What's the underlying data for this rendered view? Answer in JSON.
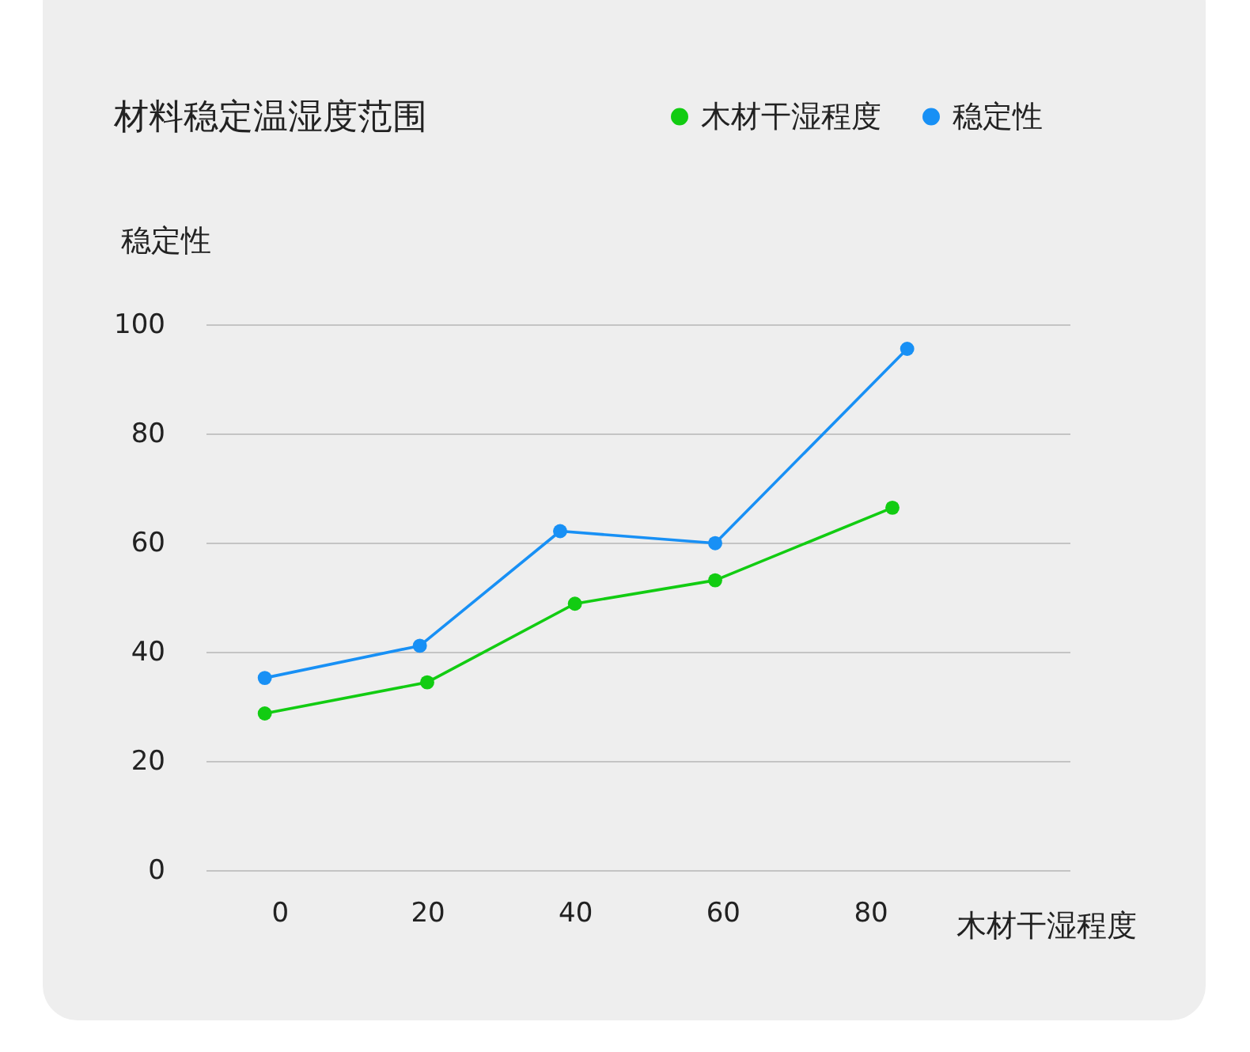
{
  "chart_data": {
    "type": "line",
    "title": "材料稳定温湿度范围",
    "xlabel": "木材干湿程度",
    "ylabel": "稳定性",
    "x": [
      -2,
      19,
      38,
      59,
      85
    ],
    "series": [
      {
        "name": "木材干湿程度",
        "color": "#12cc12",
        "x": [
          -2,
          20,
          40,
          59,
          83
        ],
        "values": [
          28.7,
          34.4,
          48.8,
          53.1,
          66.4
        ]
      },
      {
        "name": "稳定性",
        "color": "#1890f5",
        "values": [
          35.2,
          41.1,
          62.1,
          59.9,
          95.5
        ]
      }
    ],
    "xlim": [
      -10,
      107
    ],
    "xticks": [
      0,
      20,
      40,
      60,
      80
    ],
    "ylim": [
      0,
      100
    ],
    "yticks": [
      0,
      20,
      40,
      60,
      80,
      100
    ],
    "grid": "y",
    "legend": "top right",
    "marker": "circle",
    "line_style": "solid"
  }
}
